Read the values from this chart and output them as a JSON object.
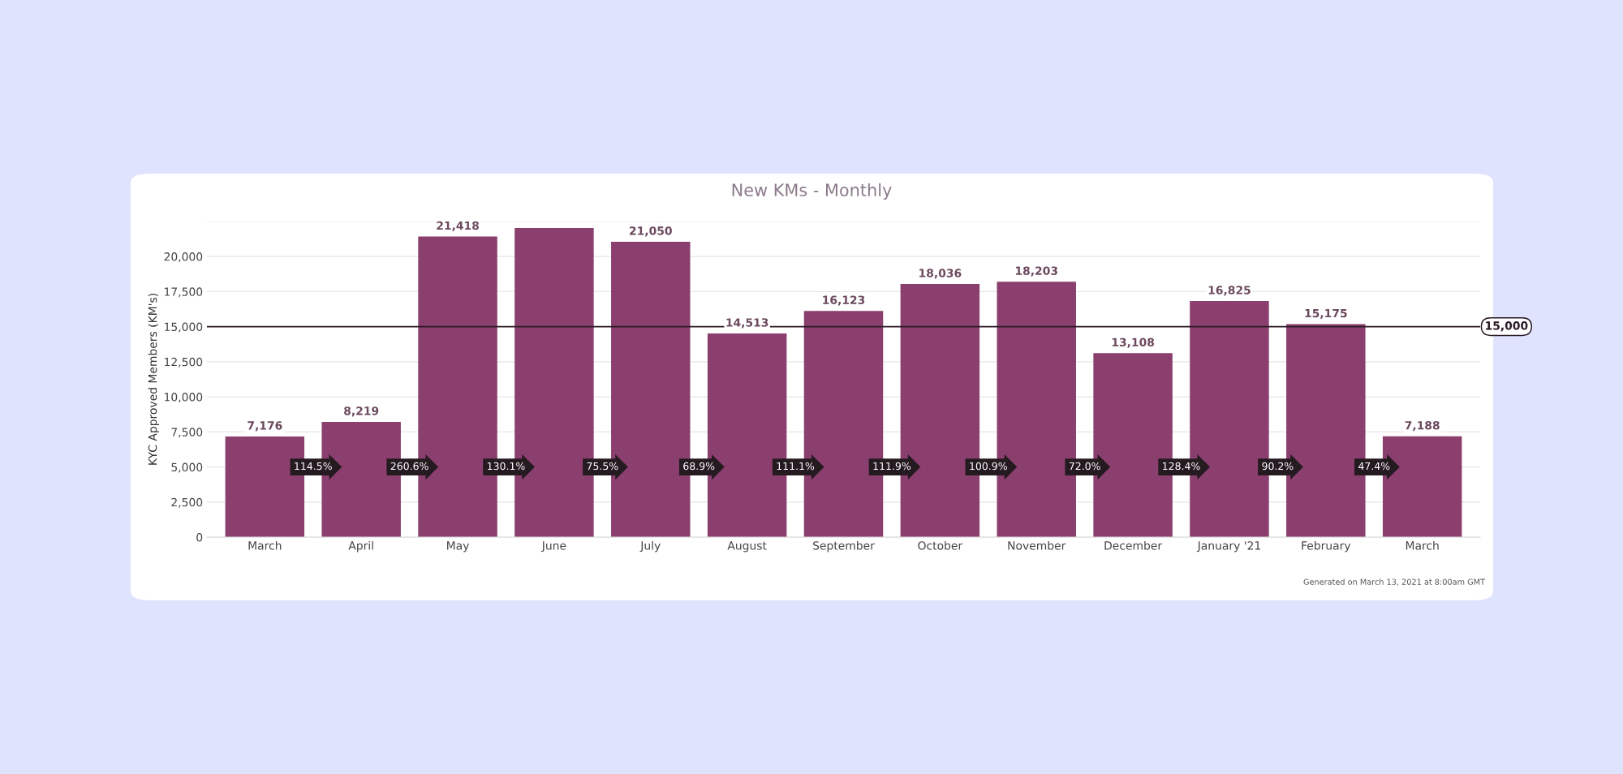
{
  "chart_data": {
    "type": "bar",
    "title": "New KMs - Monthly",
    "ylabel": "KYC Approved Members (KM's)",
    "categories": [
      "March",
      "April",
      "May",
      "June",
      "July",
      "August",
      "September",
      "October",
      "November",
      "December",
      "January '21",
      "February",
      "March"
    ],
    "values": [
      7176,
      8219,
      21418,
      22030,
      21050,
      14513,
      16123,
      18036,
      18203,
      13108,
      16825,
      15175,
      7188
    ],
    "value_labels": [
      "7,176",
      "8,219",
      "21,418",
      null,
      "21,050",
      "14,513",
      "16,123",
      "18,036",
      "18,203",
      "13,108",
      "16,825",
      "15,175",
      "7,188"
    ],
    "color": "#8a3f6f",
    "ylim": [
      0,
      22500
    ],
    "yticks": [
      {
        "value": 0,
        "label": "0"
      },
      {
        "value": 2500,
        "label": "2,500"
      },
      {
        "value": 5000,
        "label": "5,000"
      },
      {
        "value": 7500,
        "label": "7,500"
      },
      {
        "value": 10000,
        "label": "10,000"
      },
      {
        "value": 12500,
        "label": "12,500"
      },
      {
        "value": 15000,
        "label": "15,000"
      },
      {
        "value": 17500,
        "label": "17,500"
      },
      {
        "value": 20000,
        "label": "20,000"
      },
      {
        "value": 22500,
        "label": null
      }
    ],
    "grid": "y",
    "ref_lines": [
      {
        "axis": "y",
        "value": 15000,
        "label": "15,000",
        "color": "#2a1a24"
      }
    ],
    "annotations": [
      "114.5%",
      "260.6%",
      "130.1%",
      "75.5%",
      "68.9%",
      "111.1%",
      "111.9%",
      "100.9%",
      "72.0%",
      "128.4%",
      "90.2%",
      "47.4%",
      "Generated on March 13, 2021 at 8:00am GMT"
    ]
  }
}
